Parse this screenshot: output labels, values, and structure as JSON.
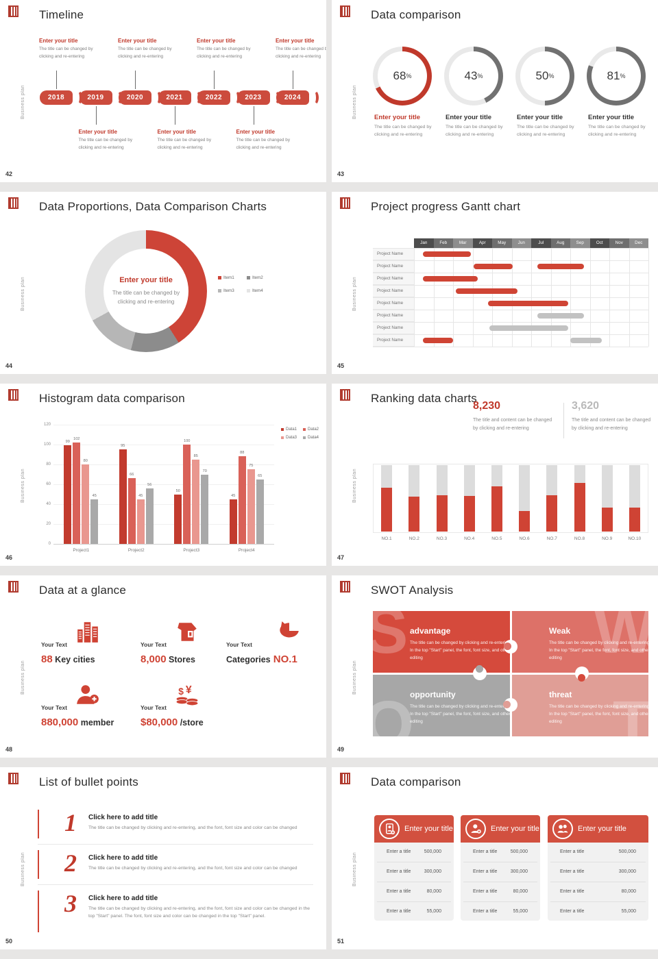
{
  "global": {
    "sidebar_label": "Business plan",
    "accent": "#cf4334",
    "muted_gray": "#b9b9b9"
  },
  "slides": {
    "timeline": {
      "page": "42",
      "title": "Timeline",
      "years": [
        "2018",
        "2019",
        "2020",
        "2021",
        "2022",
        "2023",
        "2024"
      ],
      "item_title": "Enter your title",
      "item_line1": "The title can be changed by",
      "item_line2": "clicking and re-entering"
    },
    "rings": {
      "page": "43",
      "title": "Data comparison",
      "item_title": "Enter your title",
      "item_line1": "The title can be changed by",
      "item_line2": "clicking and re-entering"
    },
    "donut": {
      "page": "44",
      "title": "Data Proportions, Data Comparison Charts",
      "center_title": "Enter your title",
      "center_line1": "The title can be changed by",
      "center_line2": "clicking and re-entering"
    },
    "gantt": {
      "page": "45",
      "title": "Project progress Gantt chart",
      "row_label": "Project Name"
    },
    "histogram": {
      "page": "46",
      "title": "Histogram data comparison"
    },
    "ranking": {
      "page": "47",
      "title": "Ranking data charts",
      "stats": [
        {
          "value": "8,230",
          "line1": "The title and content can be changed",
          "line2": "by clicking and re-entering",
          "color": "#c0392b"
        },
        {
          "value": "3,620",
          "line1": "The title and content can be changed",
          "line2": "by clicking and re-entering",
          "color": "#b9b9b9"
        }
      ]
    },
    "glance": {
      "page": "48",
      "title": "Data at a glance",
      "items": [
        {
          "label": "Your Text",
          "icon": "buildings-icon",
          "parts": [
            [
              "88",
              "accent"
            ],
            [
              "Key cities",
              "dark"
            ]
          ]
        },
        {
          "label": "Your Text",
          "icon": "store-icon",
          "parts": [
            [
              "8,000",
              "accent"
            ],
            [
              "Stores",
              "dark"
            ]
          ]
        },
        {
          "label": "Your Text",
          "icon": "pie-wheel-icon",
          "parts": [
            [
              "Categories",
              "dark"
            ],
            [
              "NO.1",
              "accent"
            ]
          ]
        },
        {
          "label": "Your Text",
          "icon": "member-add-icon",
          "parts": [
            [
              "880,000",
              "accent"
            ],
            [
              "member",
              "dark"
            ]
          ]
        },
        {
          "label": "Your Text",
          "icon": "coins-icon",
          "parts": [
            [
              "$80,000",
              "accent"
            ],
            [
              "/store",
              "dark"
            ]
          ]
        }
      ]
    },
    "swot": {
      "page": "49",
      "title": "SWOT Analysis",
      "quads": [
        {
          "letter": "S",
          "title": "advantage",
          "color": "#d54a3c",
          "body": "The title can be changed by clicking and re-entering. In the top \"Start\" panel, the font, font size, and other editing"
        },
        {
          "letter": "W",
          "title": "Weak",
          "color": "#dd7168",
          "body": "The title can be changed by clicking and re-entering. In the top \"Start\" panel, the font, font size, and other editing"
        },
        {
          "letter": "O",
          "title": "opportunity",
          "color": "#a7a7a7",
          "body": "The title can be changed by clicking and re-entering. In the top \"Start\" panel, the font, font size, and other editing"
        },
        {
          "letter": "T",
          "title": "threat",
          "color": "#e09e96",
          "body": "The title can be changed by clicking and re-entering. In the top \"Start\" panel, the font, font size, and other editing"
        }
      ]
    },
    "bullets": {
      "page": "50",
      "title": "List of bullet points",
      "items": [
        {
          "num": "1",
          "title": "Click here to add title",
          "body": "The title can be changed by clicking and re-entering, and the font, font size and color can be changed"
        },
        {
          "num": "2",
          "title": "Click here to add title",
          "body": "The title can be changed by clicking and re-entering, and the font, font size and color can be changed"
        },
        {
          "num": "3",
          "title": "Click here to add title",
          "body": "The title can be changed by clicking and re-entering, and the font, font size and color can be changed in the top \"Start\" panel. The font, font size and color can be changed in the top \"Start\" panel."
        }
      ]
    },
    "cards": {
      "page": "51",
      "title": "Data comparison",
      "card_title": "Enter your title",
      "icons": [
        "contact-card-icon",
        "person-plus-icon",
        "people-icon"
      ],
      "rows": [
        {
          "label": "Enter a title",
          "value": "500,000"
        },
        {
          "label": "Enter a title",
          "value": "300,000"
        },
        {
          "label": "Enter a title",
          "value": "80,000"
        },
        {
          "label": "Enter a title",
          "value": "55,000"
        }
      ]
    }
  },
  "chart_data": [
    {
      "id": "percent-rings",
      "type": "pie",
      "title": "Data comparison",
      "values": [
        68,
        43,
        50,
        81
      ],
      "arc_colors": [
        "#c0392b",
        "#717171",
        "#717171",
        "#717171"
      ],
      "track_color": "#e9e9e9",
      "labels": [
        "Enter your title",
        "Enter your title",
        "Enter your title",
        "Enter your title"
      ],
      "label_colors": [
        "#c0392b",
        "#333333",
        "#333333",
        "#333333"
      ]
    },
    {
      "id": "proportions-donut",
      "type": "pie",
      "title": "Data Proportions, Data Comparison Charts",
      "labels": [
        "Item1",
        "Item2",
        "Item3",
        "Item4"
      ],
      "values": [
        41,
        13,
        13,
        33
      ],
      "colors": [
        "#cd4437",
        "#8c8c8c",
        "#b6b6b6",
        "#e4e4e4"
      ],
      "legend_position": "right"
    },
    {
      "id": "gantt",
      "type": "gantt",
      "title": "Project progress Gantt chart",
      "months": [
        "Jan",
        "Feb",
        "Mar",
        "Apr",
        "May",
        "Jun",
        "Jul",
        "Aug",
        "Sep",
        "Oct",
        "Nov",
        "Dec"
      ],
      "rows": [
        [
          {
            "start": 0.45,
            "end": 2.9,
            "color": "#cf4434"
          }
        ],
        [
          {
            "start": 3.05,
            "end": 5.05,
            "color": "#cf4434"
          },
          {
            "start": 6.3,
            "end": 8.7,
            "color": "#cf4434"
          }
        ],
        [
          {
            "start": 0.45,
            "end": 3.25,
            "color": "#cf4434"
          }
        ],
        [
          {
            "start": 2.15,
            "end": 5.3,
            "color": "#cf4434"
          }
        ],
        [
          {
            "start": 3.8,
            "end": 7.9,
            "color": "#cf4434"
          }
        ],
        [
          {
            "start": 6.3,
            "end": 8.7,
            "color": "#c2c2c2"
          }
        ],
        [
          {
            "start": 3.85,
            "end": 7.9,
            "color": "#c2c2c2"
          }
        ],
        [
          {
            "start": 0.45,
            "end": 2.0,
            "color": "#cf4434"
          },
          {
            "start": 8.0,
            "end": 9.6,
            "color": "#c2c2c2"
          }
        ]
      ]
    },
    {
      "id": "histogram",
      "type": "bar",
      "title": "Histogram data comparison",
      "categories": [
        "Project1",
        "Project2",
        "Project3",
        "Project4"
      ],
      "series": [
        {
          "name": "Data1",
          "color": "#c23b2e",
          "values": [
            99,
            95,
            50,
            45
          ]
        },
        {
          "name": "Data2",
          "color": "#d96158",
          "values": [
            102,
            66,
            100,
            88
          ]
        },
        {
          "name": "Data3",
          "color": "#e9978f",
          "values": [
            80,
            45,
            85,
            75
          ]
        },
        {
          "name": "Data4",
          "color": "#a9a9a9",
          "values": [
            45,
            56,
            70,
            65
          ]
        }
      ],
      "yticks": [
        0,
        20,
        40,
        60,
        80,
        100,
        120
      ],
      "ylim": [
        0,
        120
      ],
      "legend_position": "top-right"
    },
    {
      "id": "ranking",
      "type": "bar",
      "title": "Ranking data charts",
      "categories": [
        "NO.1",
        "NO.2",
        "NO.3",
        "NO.4",
        "NO.5",
        "NO.6",
        "NO.7",
        "NO.8",
        "NO.9",
        "NO.10"
      ],
      "values_pct": [
        66,
        53,
        55,
        54,
        68,
        31,
        55,
        73,
        36,
        36
      ],
      "fill_color": "#cf4334",
      "track_color": "#dcdcdc"
    }
  ]
}
